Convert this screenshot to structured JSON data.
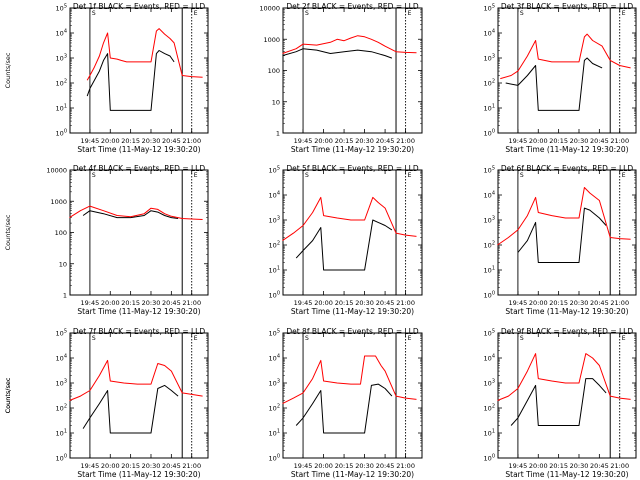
{
  "colors": {
    "events": "#000000",
    "lld": "#ff0000",
    "background": "#ffffff"
  },
  "chart_data": [
    {
      "type": "line",
      "title": "Det 1f  BLACK = Events, RED = LLD",
      "ylabel": "Counts/sec",
      "xlabel": "Start Time (11-May-12 19:30:20)",
      "yscale": "log",
      "ylim": [
        1,
        100000
      ],
      "ytick_labels": [
        "10^0",
        "10^1",
        "10^2",
        "10^3",
        "10^4",
        "10^5"
      ],
      "xtick_labels": [
        "19:45",
        "20:00",
        "20:15",
        "20:30",
        "20:45",
        "21:00"
      ],
      "xlim": [
        "19:30:20",
        "21:12"
      ],
      "grid": false,
      "legend": "in-title",
      "annotations": [
        {
          "x": "19:45",
          "label": "S"
        },
        {
          "x": "20:53",
          "label": ""
        },
        {
          "x": "21:00",
          "label": "E"
        }
      ],
      "series": [
        {
          "name": "Events",
          "x": [
            "19:43",
            "19:45",
            "19:48",
            "19:52",
            "19:55",
            "19:58",
            "20:00",
            "20:05",
            "20:10",
            "20:15",
            "20:20",
            "20:25",
            "20:30",
            "20:34",
            "20:36",
            "20:40",
            "20:44",
            "20:47"
          ],
          "y": [
            30,
            60,
            120,
            300,
            800,
            1500,
            8,
            8,
            8,
            8,
            8,
            8,
            8,
            1500,
            2000,
            1500,
            1200,
            700
          ]
        },
        {
          "name": "LLD",
          "x": [
            "19:43",
            "19:45",
            "19:48",
            "19:52",
            "19:55",
            "19:58",
            "20:00",
            "20:05",
            "20:08",
            "20:12",
            "20:15",
            "20:20",
            "20:25",
            "20:30",
            "20:34",
            "20:36",
            "20:40",
            "20:44",
            "20:47",
            "20:53",
            "21:00",
            "21:08"
          ],
          "y": [
            130,
            200,
            400,
            1200,
            4000,
            10000,
            1000,
            900,
            800,
            700,
            700,
            700,
            700,
            700,
            12000,
            15000,
            9000,
            6000,
            4000,
            200,
            180,
            170
          ]
        }
      ]
    },
    {
      "type": "line",
      "title": "Det 2f  BLACK = Events, RED = LLD",
      "ylabel": "",
      "xlabel": "Start Time (11-May-12 19:30:20)",
      "yscale": "log",
      "ylim": [
        1,
        10000
      ],
      "ytick_labels": [
        "1",
        "10",
        "100",
        "1000",
        "10000"
      ],
      "xtick_labels": [
        "19:45",
        "20:00",
        "20:15",
        "20:30",
        "20:45",
        "21:00"
      ],
      "xlim": [
        "19:30:20",
        "21:12"
      ],
      "grid": false,
      "legend": "in-title",
      "annotations": [
        {
          "x": "19:45",
          "label": "S"
        },
        {
          "x": "20:53",
          "label": ""
        },
        {
          "x": "21:00",
          "label": "E"
        }
      ],
      "series": [
        {
          "name": "Events",
          "x": [
            "19:30",
            "19:40",
            "19:45",
            "19:55",
            "20:05",
            "20:15",
            "20:25",
            "20:35",
            "20:45",
            "20:50"
          ],
          "y": [
            300,
            400,
            500,
            450,
            350,
            400,
            450,
            400,
            300,
            250
          ]
        },
        {
          "name": "LLD",
          "x": [
            "19:30",
            "19:40",
            "19:45",
            "19:55",
            "20:05",
            "20:10",
            "20:15",
            "20:20",
            "20:25",
            "20:30",
            "20:35",
            "20:40",
            "20:45",
            "20:53",
            "21:00",
            "21:08"
          ],
          "y": [
            350,
            500,
            700,
            650,
            800,
            1000,
            900,
            1100,
            1300,
            1200,
            1000,
            800,
            600,
            400,
            380,
            370
          ]
        }
      ]
    },
    {
      "type": "line",
      "title": "Det 3f  BLACK = Events, RED = LLD",
      "ylabel": "",
      "xlabel": "Start Time (11-May-12 19:30:20)",
      "yscale": "log",
      "ylim": [
        1,
        100000
      ],
      "ytick_labels": [
        "10^0",
        "10^1",
        "10^2",
        "10^3",
        "10^4",
        "10^5"
      ],
      "xtick_labels": [
        "19:45",
        "20:00",
        "20:15",
        "20:30",
        "20:45",
        "21:00"
      ],
      "xlim": [
        "19:30:20",
        "21:12"
      ],
      "grid": false,
      "legend": "in-title",
      "annotations": [
        {
          "x": "19:45",
          "label": "S"
        },
        {
          "x": "20:53",
          "label": ""
        },
        {
          "x": "21:00",
          "label": "E"
        }
      ],
      "series": [
        {
          "name": "Events",
          "x": [
            "19:36",
            "19:45",
            "19:52",
            "19:58",
            "20:00",
            "20:10",
            "20:20",
            "20:30",
            "20:34",
            "20:36",
            "20:40",
            "20:47"
          ],
          "y": [
            100,
            80,
            200,
            500,
            8,
            8,
            8,
            8,
            800,
            1000,
            600,
            400
          ]
        },
        {
          "name": "LLD",
          "x": [
            "19:32",
            "19:40",
            "19:45",
            "19:52",
            "19:58",
            "20:00",
            "20:10",
            "20:20",
            "20:30",
            "20:34",
            "20:36",
            "20:40",
            "20:47",
            "20:53",
            "21:00",
            "21:08"
          ],
          "y": [
            150,
            200,
            300,
            1200,
            5000,
            900,
            700,
            700,
            700,
            7000,
            9000,
            5000,
            3000,
            800,
            500,
            400
          ]
        }
      ]
    },
    {
      "type": "line",
      "title": "Det 4f  BLACK = Events, RED = LLD",
      "ylabel": "Counts/sec",
      "xlabel": "Start Time (11-May-12 19:30:20)",
      "yscale": "log",
      "ylim": [
        1,
        10000
      ],
      "ytick_labels": [
        "1",
        "10",
        "100",
        "1000",
        "10000"
      ],
      "xtick_labels": [
        "19:45",
        "20:00",
        "20:15",
        "20:30",
        "20:45",
        "21:00"
      ],
      "xlim": [
        "19:30:20",
        "21:12"
      ],
      "grid": false,
      "legend": "in-title",
      "annotations": [
        {
          "x": "19:45",
          "label": "S"
        },
        {
          "x": "20:53",
          "label": ""
        },
        {
          "x": "21:00",
          "label": "E"
        }
      ],
      "series": [
        {
          "name": "Events",
          "x": [
            "19:40",
            "19:45",
            "19:55",
            "20:05",
            "20:15",
            "20:25",
            "20:30",
            "20:35",
            "20:40",
            "20:45",
            "20:50"
          ],
          "y": [
            350,
            500,
            400,
            300,
            300,
            350,
            500,
            450,
            350,
            300,
            280
          ]
        },
        {
          "name": "LLD",
          "x": [
            "19:30",
            "19:38",
            "19:45",
            "19:55",
            "20:05",
            "20:15",
            "20:25",
            "20:30",
            "20:35",
            "20:40",
            "20:45",
            "20:53",
            "21:00",
            "21:08"
          ],
          "y": [
            300,
            500,
            700,
            500,
            350,
            320,
            400,
            600,
            550,
            400,
            330,
            280,
            270,
            260
          ]
        }
      ]
    },
    {
      "type": "line",
      "title": "Det 5f  BLACK = Events, RED = LLD",
      "ylabel": "",
      "xlabel": "Start Time (11-May-12 19:30:20)",
      "yscale": "log",
      "ylim": [
        1,
        100000
      ],
      "ytick_labels": [
        "10^0",
        "10^1",
        "10^2",
        "10^3",
        "10^4",
        "10^5"
      ],
      "xtick_labels": [
        "19:45",
        "20:00",
        "20:15",
        "20:30",
        "20:45",
        "21:00"
      ],
      "xlim": [
        "19:30:20",
        "21:12"
      ],
      "grid": false,
      "legend": "in-title",
      "annotations": [
        {
          "x": "19:45",
          "label": "S"
        },
        {
          "x": "20:53",
          "label": ""
        },
        {
          "x": "21:00",
          "label": "E"
        }
      ],
      "series": [
        {
          "name": "Events",
          "x": [
            "19:40",
            "19:45",
            "19:52",
            "19:58",
            "20:00",
            "20:10",
            "20:20",
            "20:30",
            "20:36",
            "20:40",
            "20:45",
            "20:50"
          ],
          "y": [
            30,
            60,
            150,
            500,
            10,
            10,
            10,
            10,
            1000,
            800,
            600,
            400
          ]
        },
        {
          "name": "LLD",
          "x": [
            "19:30",
            "19:38",
            "19:45",
            "19:52",
            "19:58",
            "20:00",
            "20:10",
            "20:20",
            "20:30",
            "20:36",
            "20:40",
            "20:45",
            "20:53",
            "21:00",
            "21:08"
          ],
          "y": [
            150,
            300,
            600,
            2000,
            8000,
            1500,
            1200,
            1000,
            1000,
            8000,
            5000,
            3000,
            300,
            250,
            220
          ]
        }
      ]
    },
    {
      "type": "line",
      "title": "Det 6f  BLACK = Events, RED = LLD",
      "ylabel": "",
      "xlabel": "Start Time (11-May-12 19:30:20)",
      "yscale": "log",
      "ylim": [
        1,
        100000
      ],
      "ytick_labels": [
        "10^0",
        "10^1",
        "10^2",
        "10^3",
        "10^4",
        "10^5"
      ],
      "xtick_labels": [
        "19:45",
        "20:00",
        "20:15",
        "20:30",
        "20:45",
        "21:00"
      ],
      "xlim": [
        "19:30:20",
        "21:12"
      ],
      "grid": false,
      "legend": "in-title",
      "annotations": [
        {
          "x": "19:45",
          "label": "S"
        },
        {
          "x": "20:53",
          "label": ""
        },
        {
          "x": "21:00",
          "label": "E"
        }
      ],
      "series": [
        {
          "name": "Events",
          "x": [
            "19:45",
            "19:52",
            "19:58",
            "20:00",
            "20:10",
            "20:20",
            "20:30",
            "20:34",
            "20:38",
            "20:45",
            "20:50"
          ],
          "y": [
            50,
            150,
            800,
            20,
            20,
            20,
            20,
            3000,
            2500,
            1200,
            600
          ]
        },
        {
          "name": "LLD",
          "x": [
            "19:30",
            "19:38",
            "19:45",
            "19:52",
            "19:58",
            "20:00",
            "20:10",
            "20:20",
            "20:30",
            "20:34",
            "20:38",
            "20:45",
            "20:53",
            "21:00",
            "21:08"
          ],
          "y": [
            100,
            200,
            400,
            1500,
            8000,
            2000,
            1500,
            1200,
            1200,
            20000,
            12000,
            6000,
            200,
            180,
            170
          ]
        }
      ]
    },
    {
      "type": "line",
      "title": "Det 7f  BLACK = Events, RED = LLD",
      "ylabel": "Counts/sec",
      "xlabel": "Start Time (11-May-12 19:30:20)",
      "yscale": "log",
      "ylim": [
        1,
        100000
      ],
      "ytick_labels": [
        "10^0",
        "10^1",
        "10^2",
        "10^3",
        "10^4",
        "10^5"
      ],
      "xtick_labels": [
        "19:45",
        "20:00",
        "20:15",
        "20:30",
        "20:45",
        "21:00"
      ],
      "xlim": [
        "19:30:20",
        "21:12"
      ],
      "grid": false,
      "legend": "in-title",
      "annotations": [
        {
          "x": "19:45",
          "label": "S"
        },
        {
          "x": "20:53",
          "label": ""
        },
        {
          "x": "21:00",
          "label": "E"
        }
      ],
      "series": [
        {
          "name": "Events",
          "x": [
            "19:40",
            "19:45",
            "19:52",
            "19:58",
            "20:00",
            "20:10",
            "20:20",
            "20:30",
            "20:35",
            "20:40",
            "20:45",
            "20:50"
          ],
          "y": [
            15,
            40,
            150,
            500,
            10,
            10,
            10,
            10,
            600,
            800,
            500,
            300
          ]
        },
        {
          "name": "LLD",
          "x": [
            "19:30",
            "19:38",
            "19:45",
            "19:52",
            "19:58",
            "20:00",
            "20:10",
            "20:20",
            "20:30",
            "20:35",
            "20:40",
            "20:45",
            "20:53",
            "21:00",
            "21:08"
          ],
          "y": [
            200,
            300,
            500,
            2000,
            8000,
            1200,
            1000,
            900,
            900,
            6000,
            5000,
            3000,
            400,
            350,
            300
          ]
        }
      ]
    },
    {
      "type": "line",
      "title": "Det 8f  BLACK = Events, RED = LLD",
      "ylabel": "Counts/sec",
      "xlabel": "Start Time (11-May-12 19:30:20)",
      "yscale": "log",
      "ylim": [
        1,
        100000
      ],
      "ytick_labels": [
        "10^0",
        "10^1",
        "10^2",
        "10^3",
        "10^4",
        "10^5"
      ],
      "xtick_labels": [
        "19:45",
        "20:00",
        "20:15",
        "20:30",
        "20:45",
        "21:00"
      ],
      "xlim": [
        "19:30:20",
        "21:12"
      ],
      "grid": false,
      "legend": "in-title",
      "annotations": [
        {
          "x": "19:45",
          "label": "S"
        },
        {
          "x": "20:53",
          "label": ""
        },
        {
          "x": "21:00",
          "label": "E"
        }
      ],
      "series": [
        {
          "name": "Events",
          "x": [
            "19:40",
            "19:45",
            "19:52",
            "19:58",
            "20:00",
            "20:10",
            "20:20",
            "20:30",
            "20:35",
            "20:40",
            "20:45",
            "20:50"
          ],
          "y": [
            20,
            40,
            150,
            500,
            10,
            10,
            10,
            10,
            800,
            900,
            600,
            300
          ]
        },
        {
          "name": "LLD",
          "x": [
            "19:30",
            "19:38",
            "19:45",
            "19:52",
            "19:58",
            "20:00",
            "20:10",
            "20:20",
            "20:27",
            "20:30",
            "20:38",
            "20:42",
            "20:45",
            "20:53",
            "21:00",
            "21:08"
          ],
          "y": [
            150,
            250,
            400,
            1500,
            8000,
            1200,
            1000,
            900,
            900,
            12000,
            12000,
            5000,
            3000,
            300,
            250,
            220
          ]
        }
      ]
    },
    {
      "type": "line",
      "title": "Det 9f  BLACK = Events, RED = LLD",
      "ylabel": "",
      "xlabel": "Start Time (11-May-12 19:30:20)",
      "yscale": "log",
      "ylim": [
        1,
        100000
      ],
      "ytick_labels": [
        "10^0",
        "10^1",
        "10^2",
        "10^3",
        "10^4",
        "10^5"
      ],
      "xtick_labels": [
        "19:45",
        "20:00",
        "20:15",
        "20:30",
        "20:45",
        "21:00"
      ],
      "xlim": [
        "19:30:20",
        "21:12"
      ],
      "grid": false,
      "legend": "in-title",
      "annotations": [
        {
          "x": "19:45",
          "label": "S"
        },
        {
          "x": "20:53",
          "label": ""
        },
        {
          "x": "21:00",
          "label": "E"
        }
      ],
      "series": [
        {
          "name": "Events",
          "x": [
            "19:40",
            "19:45",
            "19:52",
            "19:58",
            "20:00",
            "20:10",
            "20:20",
            "20:30",
            "20:35",
            "20:40",
            "20:45",
            "20:50"
          ],
          "y": [
            20,
            40,
            200,
            800,
            20,
            20,
            20,
            20,
            1500,
            1500,
            800,
            400
          ]
        },
        {
          "name": "LLD",
          "x": [
            "19:30",
            "19:38",
            "19:45",
            "19:52",
            "19:58",
            "20:00",
            "20:10",
            "20:20",
            "20:30",
            "20:35",
            "20:40",
            "20:45",
            "20:53",
            "21:00",
            "21:08"
          ],
          "y": [
            200,
            300,
            600,
            3000,
            15000,
            1500,
            1200,
            1000,
            1000,
            15000,
            10000,
            5000,
            300,
            250,
            220
          ]
        }
      ]
    }
  ]
}
